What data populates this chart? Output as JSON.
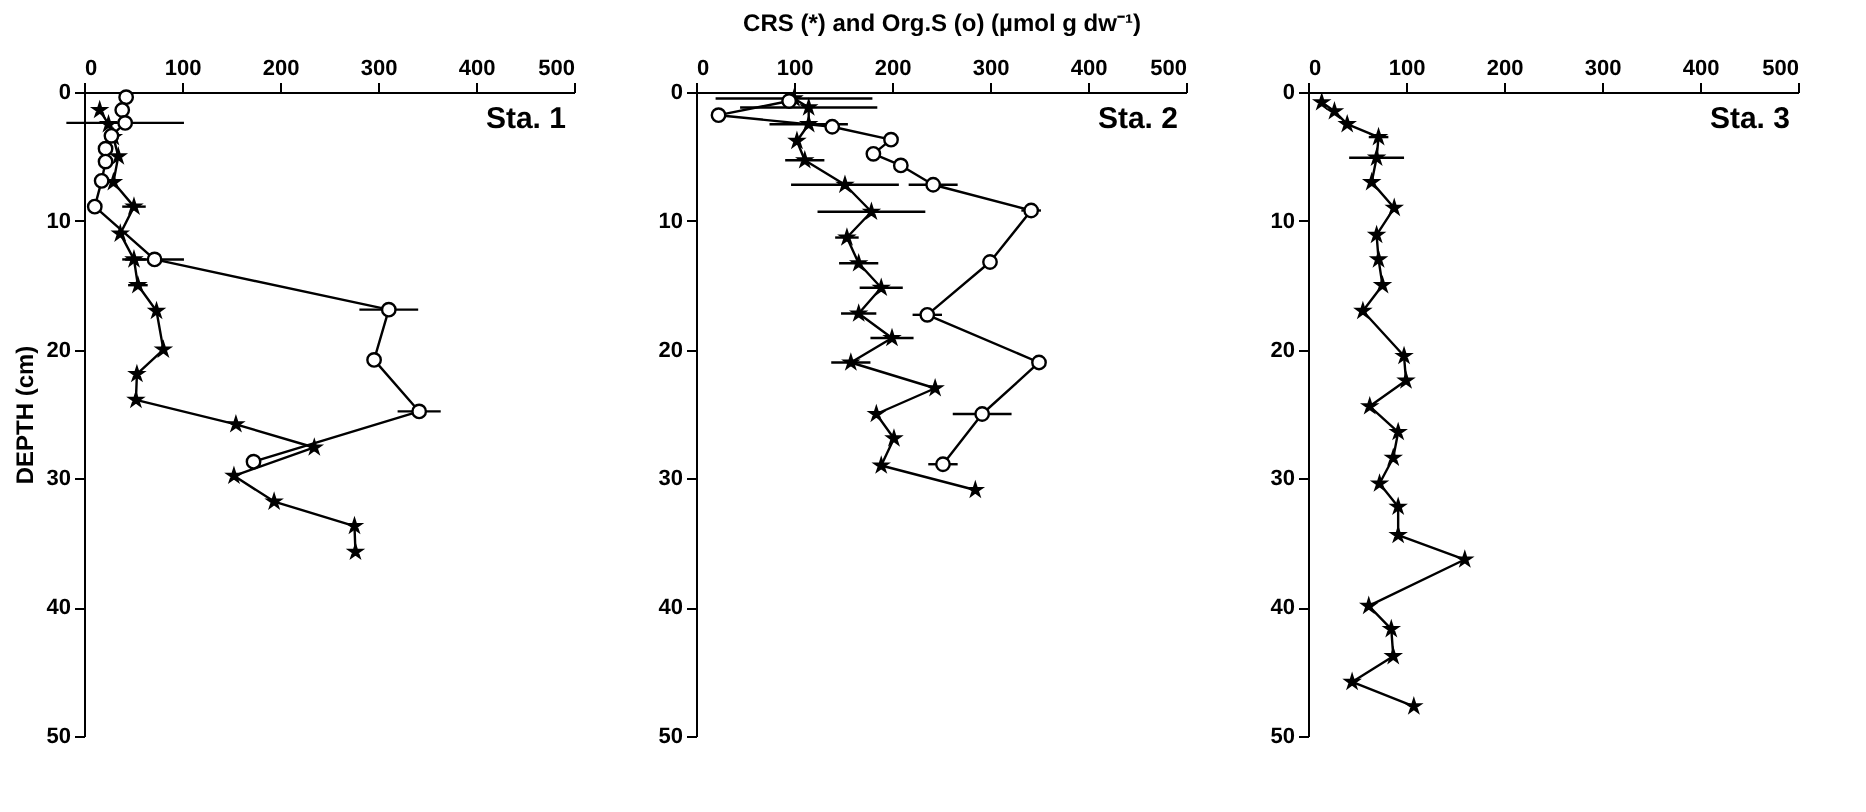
{
  "chart_data": [
    {
      "type": "line",
      "ylabel": "DEPTH (cm)",
      "annotations": [
        "Sta. 1"
      ],
      "xlim": [
        0,
        500
      ],
      "xticks": [
        0,
        100,
        200,
        300,
        {
          "value": 400,
          "label": "400"
        },
        500
      ],
      "ylim": [
        50,
        0
      ],
      "yticks": [
        0,
        10,
        20,
        30,
        40,
        50
      ],
      "grid": false,
      "legend": false,
      "line_style": "solid",
      "series": [
        {
          "marker": "star",
          "color": "#000000",
          "x": [
            16,
            25,
            30,
            35,
            30,
            51,
            37,
            51,
            55,
            74,
            81,
            54,
            53,
            155,
            235,
            153,
            194,
            276,
            277
          ],
          "values": [
            1.4,
            2.5,
            3.5,
            5,
            7,
            8.9,
            11,
            13,
            15,
            17,
            20,
            21.9,
            23.9,
            25.8,
            27.6,
            29.8,
            31.8,
            33.7,
            35.7
          ],
          "xerrors": [
            null,
            null,
            null,
            null,
            null,
            12,
            null,
            12,
            10,
            null,
            null,
            null,
            null,
            null,
            null,
            null,
            null,
            null,
            null
          ]
        },
        {
          "marker": "circle",
          "color": "#000000",
          "x": [
            43,
            39,
            42,
            28,
            22,
            22,
            18,
            11,
            72,
            311,
            296,
            342,
            173
          ],
          "values": [
            0.4,
            1.4,
            2.4,
            3.4,
            4.4,
            5.4,
            6.9,
            8.9,
            13,
            16.9,
            20.8,
            24.8,
            28.7
          ],
          "xerrors": [
            null,
            null,
            60,
            null,
            null,
            null,
            null,
            null,
            30,
            30,
            null,
            22,
            null
          ]
        }
      ]
    },
    {
      "type": "line",
      "xlabel": "CRS (*) and Org.S (o) (µmol g dw⁻¹)",
      "annotations": [
        "Sta. 2"
      ],
      "xlim": [
        0,
        500
      ],
      "xticks": [
        0,
        100,
        200,
        300,
        400,
        500
      ],
      "ylim": [
        50,
        0
      ],
      "yticks": [
        0,
        10,
        20,
        30,
        40,
        50
      ],
      "grid": false,
      "legend": false,
      "line_style": "solid",
      "series": [
        {
          "marker": "star",
          "color": "#000000",
          "x": [
            100,
            115,
            115,
            103,
            111,
            152,
            179,
            154,
            166,
            189,
            166,
            200,
            158,
            244,
            184,
            202,
            189,
            285
          ],
          "values": [
            0.5,
            1.2,
            2.5,
            3.8,
            5.3,
            7.2,
            9.3,
            11.3,
            13.3,
            15.2,
            17.2,
            19.1,
            21,
            23,
            25,
            26.9,
            29,
            30.9
          ],
          "xerrors": [
            80,
            70,
            40,
            null,
            20,
            55,
            55,
            12,
            20,
            22,
            18,
            22,
            20,
            null,
            null,
            null,
            null,
            null
          ]
        },
        {
          "marker": "circle",
          "color": "#000000",
          "x": [
            95,
            23,
            139,
            199,
            181,
            209,
            242,
            342,
            300,
            236,
            350,
            292,
            252
          ],
          "values": [
            0.7,
            1.8,
            2.7,
            3.7,
            4.8,
            5.7,
            7.2,
            9.2,
            13.2,
            17.3,
            21,
            25,
            28.9
          ],
          "xerrors": [
            null,
            null,
            null,
            null,
            null,
            null,
            25,
            10,
            null,
            15,
            null,
            30,
            15
          ]
        }
      ]
    },
    {
      "type": "line",
      "annotations": [
        "Sta. 3"
      ],
      "xlim": [
        0,
        500
      ],
      "xticks": [
        0,
        100,
        200,
        300,
        400,
        500
      ],
      "ylim": [
        50,
        0
      ],
      "yticks": [
        0,
        10,
        20,
        30,
        40,
        50
      ],
      "grid": false,
      "legend": false,
      "line_style": "solid",
      "series": [
        {
          "marker": "star",
          "color": "#000000",
          "x": [
            14,
            27,
            40,
            72,
            70,
            65,
            88,
            70,
            72,
            76,
            56,
            98,
            100,
            63,
            92,
            87,
            73,
            92,
            92,
            160,
            62,
            85,
            87,
            45,
            108
          ],
          "values": [
            0.8,
            1.5,
            2.5,
            3.5,
            5.1,
            7,
            9,
            11.1,
            13,
            15,
            17,
            20.5,
            22.4,
            24.4,
            26.4,
            28.4,
            30.4,
            32.2,
            34.4,
            36.3,
            39.9,
            41.7,
            43.8,
            45.8,
            47.7
          ],
          "xerrors": [
            null,
            null,
            null,
            10,
            28,
            null,
            null,
            null,
            null,
            null,
            null,
            null,
            null,
            null,
            null,
            null,
            null,
            null,
            null,
            null,
            null,
            null,
            null,
            null,
            null
          ]
        }
      ]
    }
  ]
}
